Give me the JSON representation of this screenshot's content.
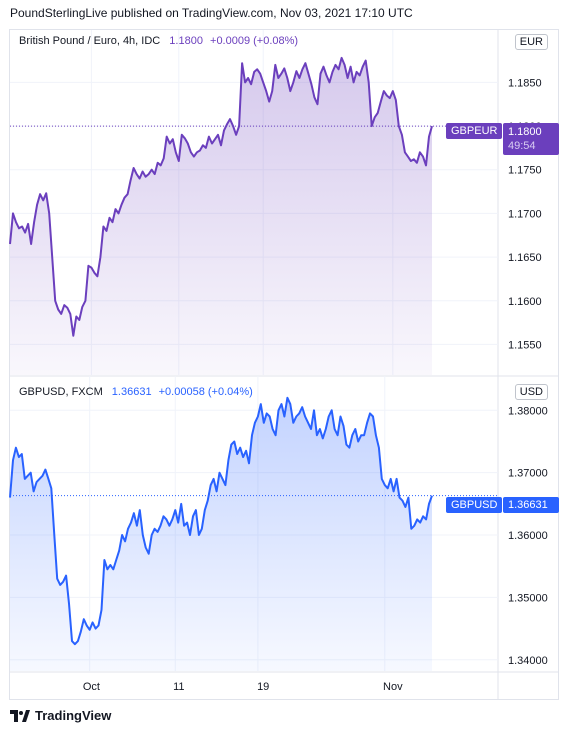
{
  "header": {
    "text": "PoundSterlingLive published on TradingView.com, Nov 03, 2021 17:10 UTC"
  },
  "footer": {
    "brand": "TradingView",
    "logo_icon": "tradingview-logo-icon"
  },
  "panes": {
    "top": {
      "name": "British Pound / Euro, 4h, IDC",
      "last": "1.1800",
      "change": "+0.0009 (+0.08%)",
      "unit": "EUR",
      "tag_symbol": "GBPEUR",
      "tag_value": "1.1800",
      "countdown": "49:54",
      "color": "#6b3fbd"
    },
    "bottom": {
      "name": "GBPUSD, FXCM",
      "last": "1.36631",
      "change": "+0.00058 (+0.04%)",
      "unit": "USD",
      "tag_symbol": "GBPUSD",
      "tag_value": "1.36631",
      "color": "#2962ff"
    }
  },
  "chart_data": [
    {
      "type": "area",
      "title": "British Pound / Euro, 4h, IDC",
      "ylim": [
        1.1515,
        1.191
      ],
      "y_ticks": [
        "1.1550",
        "1.1600",
        "1.1650",
        "1.1700",
        "1.1750",
        "1.1800",
        "1.1850"
      ],
      "x_ticks": [
        "Oct",
        "11",
        "19",
        "Nov"
      ],
      "x_tick_index": [
        27,
        56,
        84,
        127
      ],
      "last_value": 1.18,
      "series": [
        {
          "values": [
            1.1665,
            1.17,
            1.169,
            1.1683,
            1.1685,
            1.1678,
            1.1688,
            1.1665,
            1.169,
            1.171,
            1.1722,
            1.1715,
            1.1723,
            1.17,
            1.165,
            1.16,
            1.159,
            1.1585,
            1.1595,
            1.1592,
            1.1585,
            1.156,
            1.1582,
            1.1578,
            1.1593,
            1.16,
            1.164,
            1.1638,
            1.1632,
            1.1628,
            1.165,
            1.1685,
            1.168,
            1.1695,
            1.169,
            1.1705,
            1.17,
            1.171,
            1.1718,
            1.1722,
            1.1738,
            1.1752,
            1.1745,
            1.174,
            1.1748,
            1.1742,
            1.1745,
            1.175,
            1.1745,
            1.1758,
            1.1755,
            1.1763,
            1.1788,
            1.178,
            1.1785,
            1.177,
            1.176,
            1.179,
            1.1786,
            1.178,
            1.177,
            1.1765,
            1.177,
            1.1772,
            1.1778,
            1.1775,
            1.1788,
            1.178,
            1.1785,
            1.179,
            1.1778,
            1.1795,
            1.1802,
            1.1808,
            1.18,
            1.179,
            1.18,
            1.1872,
            1.185,
            1.1855,
            1.1848,
            1.1862,
            1.1865,
            1.186,
            1.185,
            1.184,
            1.1828,
            1.184,
            1.187,
            1.1855,
            1.186,
            1.1866,
            1.1855,
            1.184,
            1.185,
            1.1863,
            1.1855,
            1.1865,
            1.1872,
            1.186,
            1.1848,
            1.1833,
            1.1825,
            1.186,
            1.1868,
            1.1858,
            1.185,
            1.1862,
            1.187,
            1.1865,
            1.1878,
            1.187,
            1.1855,
            1.1868,
            1.185,
            1.1862,
            1.1858,
            1.1868,
            1.1875,
            1.185,
            1.18,
            1.181,
            1.1815,
            1.1828,
            1.184,
            1.1835,
            1.1832,
            1.184,
            1.183,
            1.18,
            1.179,
            1.177,
            1.1765,
            1.176,
            1.1762,
            1.1758,
            1.177,
            1.1765,
            1.1755,
            1.1788,
            1.18
          ]
        }
      ]
    },
    {
      "type": "area",
      "title": "GBPUSD, FXCM",
      "ylim": [
        1.3382,
        1.3855
      ],
      "y_ticks": [
        "1.34000",
        "1.35000",
        "1.36000",
        "1.37000",
        "1.38000"
      ],
      "x_ticks": [
        "Oct",
        "11",
        "19",
        "Nov"
      ],
      "x_tick_index": [
        27,
        56,
        84,
        127
      ],
      "last_value": 1.36631,
      "series": [
        {
          "values": [
            1.366,
            1.372,
            1.374,
            1.3725,
            1.373,
            1.369,
            1.3695,
            1.37,
            1.367,
            1.3685,
            1.369,
            1.3695,
            1.3705,
            1.369,
            1.3675,
            1.36,
            1.353,
            1.352,
            1.3525,
            1.3535,
            1.349,
            1.343,
            1.3425,
            1.343,
            1.3445,
            1.3465,
            1.3455,
            1.3448,
            1.346,
            1.345,
            1.3455,
            1.348,
            1.356,
            1.3545,
            1.3552,
            1.3545,
            1.356,
            1.3575,
            1.36,
            1.359,
            1.361,
            1.362,
            1.3635,
            1.3615,
            1.364,
            1.36,
            1.358,
            1.357,
            1.36,
            1.361,
            1.3605,
            1.3615,
            1.363,
            1.3625,
            1.3615,
            1.3625,
            1.364,
            1.362,
            1.365,
            1.3615,
            1.362,
            1.36,
            1.363,
            1.364,
            1.36,
            1.361,
            1.364,
            1.3655,
            1.368,
            1.369,
            1.367,
            1.37,
            1.369,
            1.368,
            1.372,
            1.3745,
            1.375,
            1.373,
            1.374,
            1.3725,
            1.3735,
            1.3715,
            1.376,
            1.378,
            1.379,
            1.381,
            1.378,
            1.3795,
            1.379,
            1.377,
            1.376,
            1.38,
            1.381,
            1.379,
            1.382,
            1.381,
            1.378,
            1.379,
            1.3795,
            1.3805,
            1.379,
            1.378,
            1.377,
            1.38,
            1.376,
            1.377,
            1.3755,
            1.377,
            1.379,
            1.38,
            1.377,
            1.376,
            1.379,
            1.3775,
            1.3745,
            1.374,
            1.376,
            1.377,
            1.375,
            1.376,
            1.376,
            1.378,
            1.3795,
            1.379,
            1.376,
            1.374,
            1.369,
            1.368,
            1.3675,
            1.369,
            1.367,
            1.369,
            1.366,
            1.3655,
            1.3645,
            1.366,
            1.361,
            1.3615,
            1.3625,
            1.362,
            1.363,
            1.3625,
            1.365,
            1.3663
          ]
        }
      ]
    }
  ]
}
